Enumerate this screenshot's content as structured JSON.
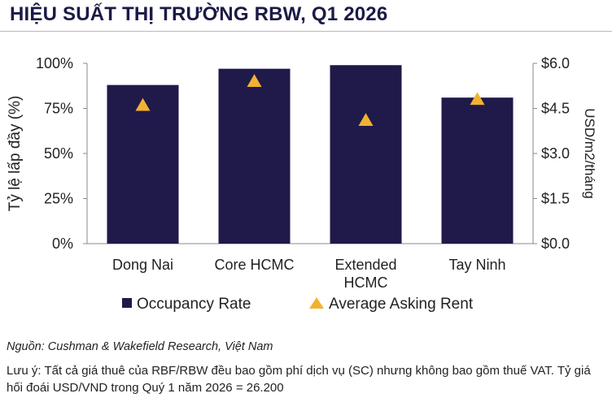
{
  "title": "HIỆU SUẤT THỊ TRƯỜNG RBW, Q1 2026",
  "source": "Nguồn: Cushman & Wakefield Research, Việt Nam",
  "note": "Lưu ý: Tất cả giá thuê của RBF/RBW đều bao gồm phí dịch vụ (SC) nhưng không bao gồm thuế VAT. Tỷ giá hối đoái USD/VND trong Quý 1 năm 2026 = 26.200",
  "colors": {
    "bar": "#1f1a4a",
    "marker": "#f2b230",
    "title": "#1b1a47",
    "axis": "#8a8a8a"
  },
  "chart_data": {
    "type": "bar",
    "categories": [
      "Dong Nai",
      "Core HCMC",
      "Extended HCMC",
      "Tay Ninh"
    ],
    "category_lines": [
      [
        "Dong Nai"
      ],
      [
        "Core HCMC"
      ],
      [
        "Extended",
        "HCMC"
      ],
      [
        "Tay Ninh"
      ]
    ],
    "series": [
      {
        "name": "Occupancy Rate",
        "axis": "left",
        "kind": "bar",
        "values": [
          88,
          97,
          99,
          81
        ]
      },
      {
        "name": "Average Asking Rent",
        "axis": "right",
        "kind": "marker-triangle",
        "values": [
          4.6,
          5.4,
          4.1,
          4.8
        ]
      }
    ],
    "ylabel": "Tỷ lệ lấp đầy (%)",
    "ylabel_right": "USD/m2/tháng",
    "ylim": [
      0,
      100
    ],
    "ylim_right": [
      0,
      6
    ],
    "yticks": [
      "0%",
      "25%",
      "50%",
      "75%",
      "100%"
    ],
    "yticks_right": [
      "$0.0",
      "$1.5",
      "$3.0",
      "$4.5",
      "$6.0"
    ],
    "grid": false,
    "legend_position": "bottom"
  }
}
